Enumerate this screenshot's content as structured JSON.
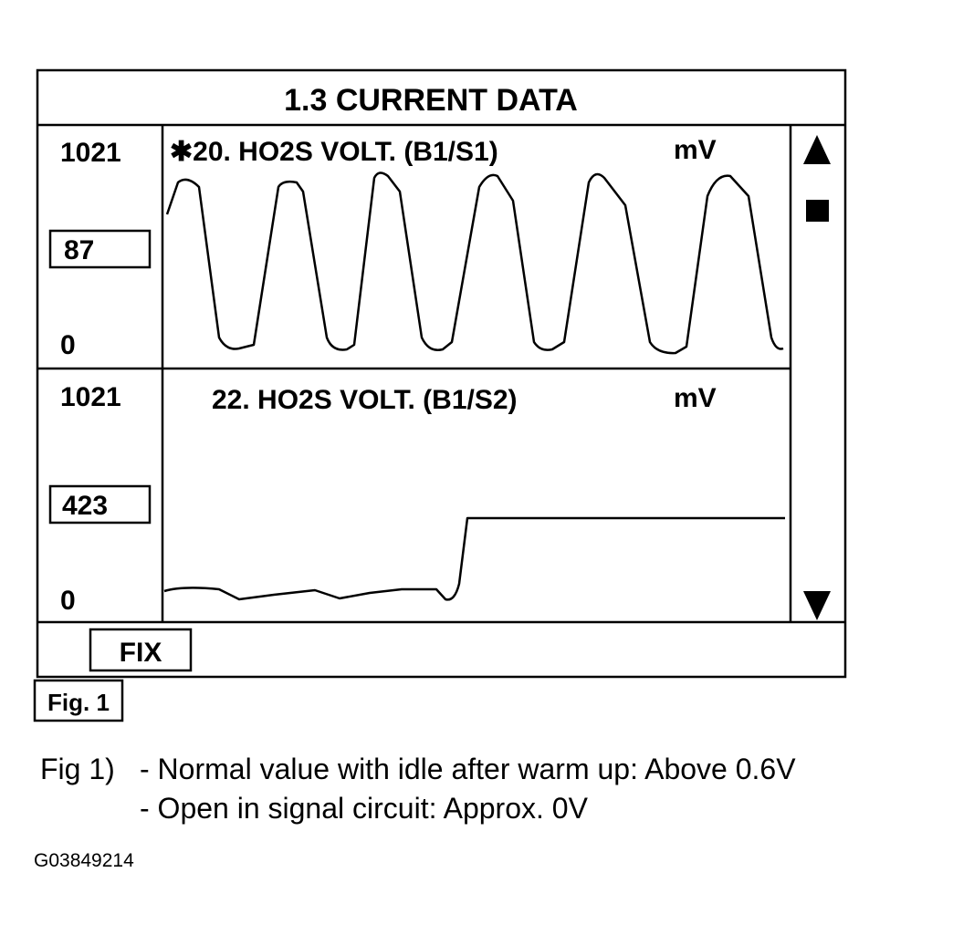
{
  "screen": {
    "title": "1.3 CURRENT DATA",
    "panels": [
      {
        "label": "✱20. HO2S  VOLT. (B1/S1)",
        "unit": "mV",
        "max": "1021",
        "value": "87",
        "min": "0"
      },
      {
        "label": "22. HO2S  VOLT. (B1/S2)",
        "unit": "mV",
        "max": "1021",
        "value": "423",
        "min": "0"
      }
    ],
    "button": "FIX"
  },
  "figure_tag": "Fig. 1",
  "caption": {
    "lead": "Fig 1)",
    "lines": [
      "- Normal value with idle after warm up: Above 0.6V",
      "- Open in signal circuit: Approx. 0V"
    ]
  },
  "code": "G03849214"
}
